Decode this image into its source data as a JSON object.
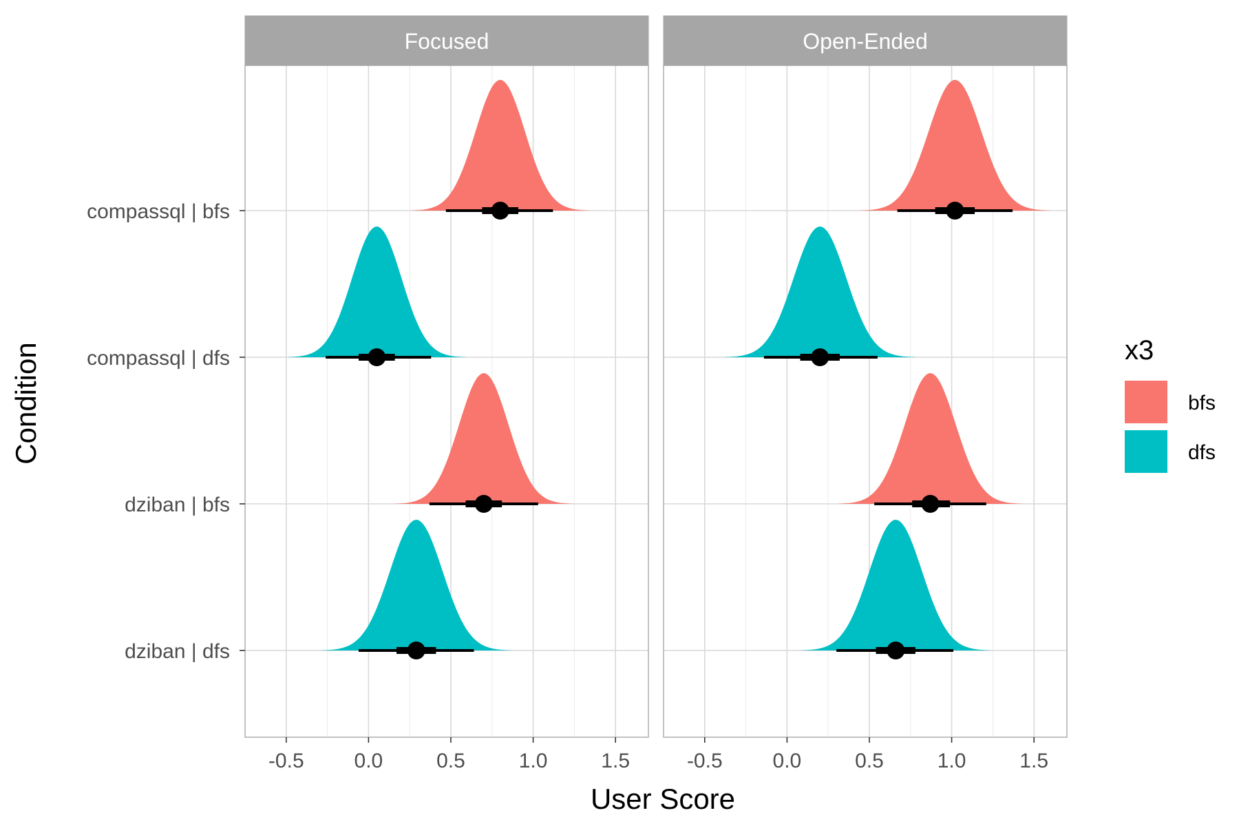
{
  "chart_data": {
    "type": "halfeye",
    "xlabel": "User Score",
    "ylabel": "Condition",
    "xlim": [
      -0.75,
      1.7
    ],
    "x_ticks": [
      -0.5,
      0.0,
      0.5,
      1.0,
      1.5
    ],
    "x_tick_labels": [
      "-0.5",
      "0.0",
      "0.5",
      "1.0",
      "1.5"
    ],
    "categories": [
      "compassql | bfs",
      "compassql | dfs",
      "dziban | bfs",
      "dziban | dfs"
    ],
    "legend": {
      "title": "x3",
      "position": "right",
      "entries": [
        {
          "key": "bfs",
          "label": "bfs",
          "color": "#F8766D"
        },
        {
          "key": "dfs",
          "label": "dfs",
          "color": "#00BFC4"
        }
      ]
    },
    "grid": true,
    "panels": [
      {
        "title": "Focused",
        "series": [
          {
            "category": "compassql | bfs",
            "group": "bfs",
            "median": 0.8,
            "sd": 0.15,
            "interval_66": [
              0.69,
              0.91
            ],
            "interval_95": [
              0.47,
              1.12
            ]
          },
          {
            "category": "compassql | dfs",
            "group": "dfs",
            "median": 0.05,
            "sd": 0.15,
            "interval_66": [
              -0.06,
              0.16
            ],
            "interval_95": [
              -0.26,
              0.38
            ]
          },
          {
            "category": "dziban | bfs",
            "group": "bfs",
            "median": 0.7,
            "sd": 0.15,
            "interval_66": [
              0.59,
              0.81
            ],
            "interval_95": [
              0.37,
              1.03
            ]
          },
          {
            "category": "dziban | dfs",
            "group": "dfs",
            "median": 0.29,
            "sd": 0.16,
            "interval_66": [
              0.17,
              0.41
            ],
            "interval_95": [
              -0.06,
              0.64
            ]
          }
        ]
      },
      {
        "title": "Open-Ended",
        "series": [
          {
            "category": "compassql | bfs",
            "group": "bfs",
            "median": 1.02,
            "sd": 0.16,
            "interval_66": [
              0.9,
              1.14
            ],
            "interval_95": [
              0.67,
              1.37
            ]
          },
          {
            "category": "compassql | dfs",
            "group": "dfs",
            "median": 0.2,
            "sd": 0.16,
            "interval_66": [
              0.08,
              0.32
            ],
            "interval_95": [
              -0.14,
              0.55
            ]
          },
          {
            "category": "dziban | bfs",
            "group": "bfs",
            "median": 0.87,
            "sd": 0.155,
            "interval_66": [
              0.76,
              0.99
            ],
            "interval_95": [
              0.53,
              1.21
            ]
          },
          {
            "category": "dziban | dfs",
            "group": "dfs",
            "median": 0.66,
            "sd": 0.16,
            "interval_66": [
              0.54,
              0.78
            ],
            "interval_95": [
              0.3,
              1.01
            ]
          }
        ]
      }
    ]
  }
}
